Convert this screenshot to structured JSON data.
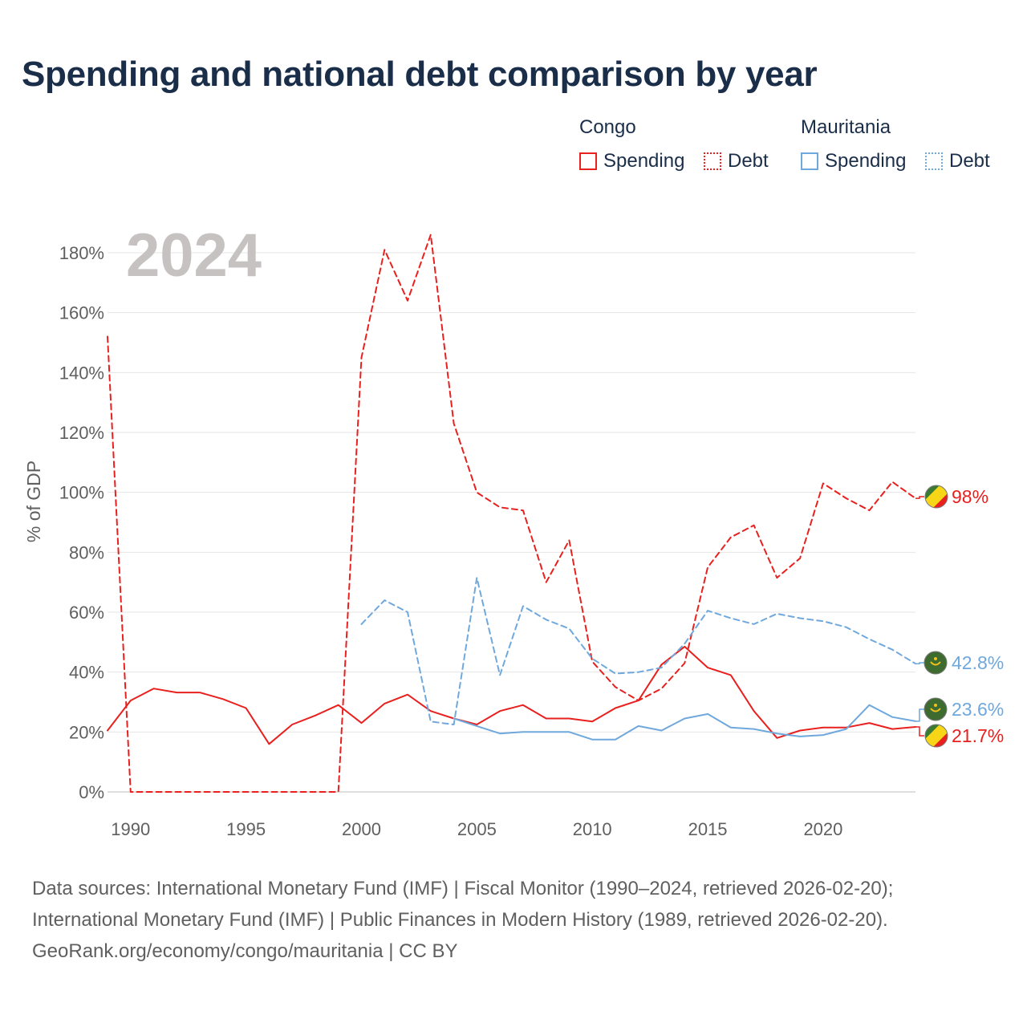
{
  "title": "Spending and national debt comparison by year",
  "legend": {
    "groups": [
      {
        "name": "Congo",
        "color": "#e8201e",
        "items": [
          "Spending",
          "Debt"
        ]
      },
      {
        "name": "Mauritania",
        "color": "#6fa8dc",
        "items": [
          "Spending",
          "Debt"
        ]
      }
    ]
  },
  "footer": {
    "line1": "Data sources: International Monetary Fund (IMF) | Fiscal Monitor (1990–2024, retrieved 2026-02-20);",
    "line2": "International Monetary Fund (IMF) | Public Finances in Modern History (1989, retrieved 2026-02-20).",
    "line3": "GeoRank.org/economy/congo/mauritania | CC BY"
  },
  "chart_data": {
    "type": "line",
    "title": "Spending and national debt comparison by year",
    "year_label": "2024",
    "ylabel": "% of GDP",
    "xlabel": "",
    "xlim": [
      1989,
      2024
    ],
    "ylim": [
      0,
      180
    ],
    "yticks": [
      0,
      20,
      40,
      60,
      80,
      100,
      120,
      140,
      160,
      180
    ],
    "ytick_labels": [
      "0%",
      "20%",
      "40%",
      "60%",
      "80%",
      "100%",
      "120%",
      "140%",
      "160%",
      "180%"
    ],
    "xticks": [
      1990,
      1995,
      2000,
      2005,
      2010,
      2015,
      2020
    ],
    "xtick_labels": [
      "1990",
      "1995",
      "2000",
      "2005",
      "2010",
      "2015",
      "2020"
    ],
    "grid": true,
    "series": [
      {
        "name": "Congo Spending",
        "country": "Congo",
        "kind": "Spending",
        "color": "#e8201e",
        "dash": "solid",
        "x": [
          1989,
          1990,
          1991,
          1992,
          1993,
          1994,
          1995,
          1996,
          1997,
          1998,
          1999,
          2000,
          2001,
          2002,
          2003,
          2004,
          2005,
          2006,
          2007,
          2008,
          2009,
          2010,
          2011,
          2012,
          2013,
          2014,
          2015,
          2016,
          2017,
          2018,
          2019,
          2020,
          2021,
          2022,
          2023,
          2024
        ],
        "y": [
          20.5,
          30.5,
          34.5,
          33.2,
          33.2,
          31,
          28,
          16,
          22.5,
          25.5,
          29,
          23,
          29.5,
          32.5,
          27,
          24.5,
          22.5,
          27,
          29,
          24.5,
          24.5,
          23.5,
          28,
          30.5,
          42.5,
          48.5,
          41.5,
          39,
          27,
          18,
          20.5,
          21.5,
          21.5,
          23,
          21,
          21.7
        ],
        "end_label": "21.7%"
      },
      {
        "name": "Congo Debt",
        "country": "Congo",
        "kind": "Debt",
        "color": "#e8201e",
        "dash": "dashed",
        "x": [
          1989,
          1990,
          1991,
          1992,
          1993,
          1994,
          1995,
          1996,
          1997,
          1998,
          1999,
          2000,
          2001,
          2002,
          2003,
          2004,
          2005,
          2006,
          2007,
          2008,
          2009,
          2010,
          2011,
          2012,
          2013,
          2014,
          2015,
          2016,
          2017,
          2018,
          2019,
          2020,
          2021,
          2022,
          2023,
          2024
        ],
        "y": [
          152,
          0,
          0,
          0,
          0,
          0,
          0,
          0,
          0,
          0,
          0,
          145,
          181,
          164,
          186,
          123,
          100,
          95,
          94,
          70,
          84,
          43.5,
          35,
          30.5,
          34.5,
          43,
          75,
          85,
          89,
          71.5,
          78,
          103,
          98,
          94,
          103.5,
          98
        ],
        "end_label": "98%"
      },
      {
        "name": "Mauritania Spending",
        "country": "Mauritania",
        "kind": "Spending",
        "color": "#6fa8dc",
        "dash": "solid",
        "x": [
          2004,
          2005,
          2006,
          2007,
          2008,
          2009,
          2010,
          2011,
          2012,
          2013,
          2014,
          2015,
          2016,
          2017,
          2018,
          2019,
          2020,
          2021,
          2022,
          2023,
          2024
        ],
        "y": [
          24.5,
          22,
          19.5,
          20,
          20,
          20,
          17.5,
          17.5,
          22,
          20.5,
          24.5,
          26,
          21.5,
          21,
          19.5,
          18.5,
          19,
          21,
          29,
          25,
          23.6
        ],
        "end_label": "23.6%"
      },
      {
        "name": "Mauritania Debt",
        "country": "Mauritania",
        "kind": "Debt",
        "color": "#6fa8dc",
        "dash": "dashed",
        "x": [
          2000,
          2001,
          2002,
          2003,
          2004,
          2005,
          2006,
          2007,
          2008,
          2009,
          2010,
          2011,
          2012,
          2013,
          2014,
          2015,
          2016,
          2017,
          2018,
          2019,
          2020,
          2021,
          2022,
          2023,
          2024
        ],
        "y": [
          56,
          64,
          60,
          23.5,
          22.5,
          71.5,
          39,
          62,
          57.5,
          54.5,
          44.5,
          39.5,
          40,
          41.5,
          49.5,
          60.5,
          58,
          56,
          59.5,
          58,
          57,
          55,
          51,
          47.5,
          42.8
        ],
        "end_label": "42.8%"
      }
    ]
  }
}
